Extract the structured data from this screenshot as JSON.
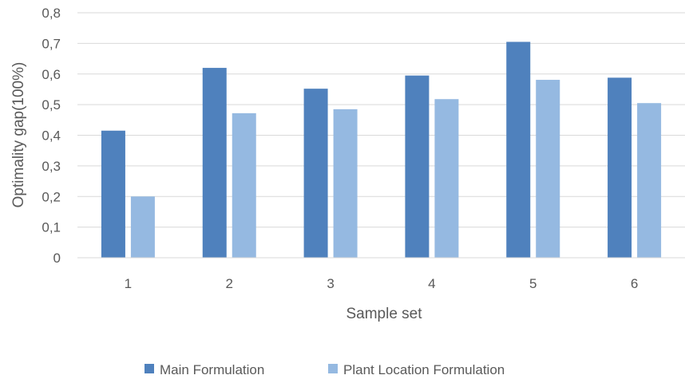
{
  "chart_data": {
    "type": "bar",
    "title": "",
    "xlabel": "Sample set",
    "ylabel": "Optimality gap(100%)",
    "categories": [
      "1",
      "2",
      "3",
      "4",
      "5",
      "6"
    ],
    "series": [
      {
        "name": "Main Formulation",
        "color": "#4f81bd",
        "values": [
          0.415,
          0.62,
          0.552,
          0.595,
          0.705,
          0.588
        ]
      },
      {
        "name": "Plant Location Formulation",
        "color": "#95b9e1",
        "values": [
          0.2,
          0.472,
          0.485,
          0.518,
          0.581,
          0.505
        ]
      }
    ],
    "ylim": [
      0,
      0.8
    ],
    "yticks": [
      "0",
      "0,1",
      "0,2",
      "0,3",
      "0,4",
      "0,5",
      "0,6",
      "0,7",
      "0,8"
    ],
    "grid": true,
    "legend_position": "bottom"
  }
}
